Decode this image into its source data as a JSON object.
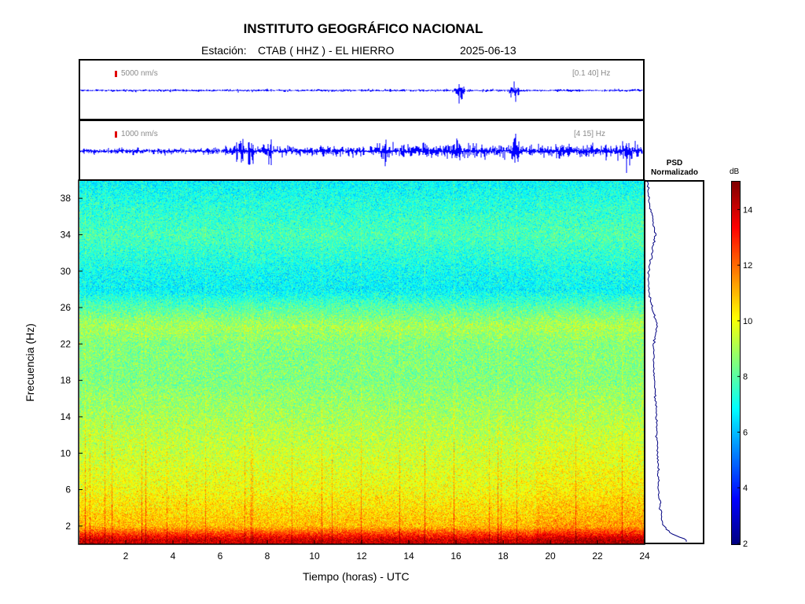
{
  "header": {
    "title": "INSTITUTO GEOGRÁFICO NACIONAL",
    "station_label": "Estación:",
    "station": "CTAB ( HHZ ) - EL HIERRO",
    "date": "2025-06-13"
  },
  "traces": [
    {
      "scale_label": "5000 nm/s",
      "band_label": "[0.1 40] Hz",
      "color": "#0000ff"
    },
    {
      "scale_label": "1000 nm/s",
      "band_label": "[4 15] Hz",
      "color": "#0000ff"
    }
  ],
  "psd_panel": {
    "title_line1": "PSD",
    "title_line2": "Normalizado"
  },
  "chart_data": [
    {
      "type": "line",
      "description_series": "seismogram trace, broadband",
      "x_range": [
        0,
        24
      ],
      "series": [
        {
          "values_envelope_peaks_hours": [
            16.2,
            18.5
          ]
        }
      ]
    },
    {
      "type": "line",
      "x_range": [
        0,
        24
      ],
      "series": [
        {
          "values_envelope_peaks_hours": [
            6.8,
            7.2,
            8.0,
            13.0,
            16.2,
            18.5,
            23.3
          ]
        }
      ]
    },
    {
      "type": "heatmap",
      "xlabel": "Tiempo (horas) - UTC",
      "ylabel": "Frecuencia  (Hz)",
      "xlim": [
        0,
        24
      ],
      "ylim": [
        0,
        40
      ],
      "x_ticks": [
        2,
        4,
        6,
        8,
        10,
        12,
        14,
        16,
        18,
        20,
        22,
        24
      ],
      "y_ticks": [
        2,
        6,
        10,
        14,
        18,
        22,
        26,
        30,
        34,
        38
      ],
      "colorbar": {
        "label": "dB",
        "range": [
          2,
          15
        ],
        "ticks": [
          2,
          4,
          6,
          8,
          10,
          12,
          14
        ],
        "colormap": "jet"
      },
      "levels_by_frequency": [
        {
          "hz": 0.5,
          "db": 14
        },
        {
          "hz": 2,
          "db": 11
        },
        {
          "hz": 6,
          "db": 10
        },
        {
          "hz": 10,
          "db": 9.5
        },
        {
          "hz": 14,
          "db": 9
        },
        {
          "hz": 18,
          "db": 8.5
        },
        {
          "hz": 22,
          "db": 8.5
        },
        {
          "hz": 24,
          "db": 9
        },
        {
          "hz": 26,
          "db": 8
        },
        {
          "hz": 28,
          "db": 6.8
        },
        {
          "hz": 30,
          "db": 7
        },
        {
          "hz": 34,
          "db": 7.8
        },
        {
          "hz": 38,
          "db": 7.2
        },
        {
          "hz": 40,
          "db": 6.8
        }
      ]
    },
    {
      "type": "line",
      "title": "PSD Normalizado",
      "ylim": [
        0,
        40
      ],
      "series": [
        {
          "points": [
            {
              "hz": 0.3,
              "level": 0.75
            },
            {
              "hz": 1,
              "level": 0.45
            },
            {
              "hz": 2,
              "level": 0.3
            },
            {
              "hz": 4,
              "level": 0.25
            },
            {
              "hz": 6,
              "level": 0.22
            },
            {
              "hz": 10,
              "level": 0.2
            },
            {
              "hz": 14,
              "level": 0.18
            },
            {
              "hz": 18,
              "level": 0.14
            },
            {
              "hz": 22,
              "level": 0.12
            },
            {
              "hz": 24,
              "level": 0.2
            },
            {
              "hz": 26,
              "level": 0.09
            },
            {
              "hz": 28,
              "level": 0.03
            },
            {
              "hz": 30,
              "level": 0.03
            },
            {
              "hz": 34,
              "level": 0.15
            },
            {
              "hz": 36,
              "level": 0.11
            },
            {
              "hz": 38,
              "level": 0.03
            },
            {
              "hz": 40,
              "level": 0.01
            }
          ]
        }
      ]
    }
  ]
}
